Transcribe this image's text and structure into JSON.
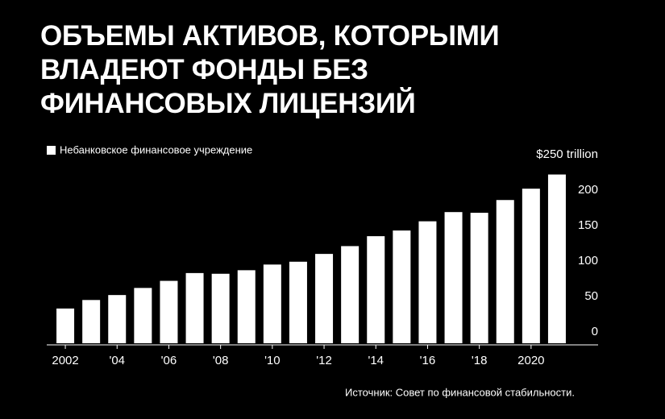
{
  "chart_data": {
    "type": "bar",
    "title": "ОБЪЕМЫ АКТИВОВ, КОТОРЫМИ ВЛАДЕЮТ ФОНДЫ БЕЗ ФИНАНСОВЫХ ЛИЦЕНЗИЙ",
    "source": "Источник: Совет по финансовой стабильности.",
    "categories": [
      "2002",
      null,
      "'04",
      null,
      "'06",
      null,
      "'08",
      null,
      "'10",
      null,
      "'12",
      null,
      "'14",
      null,
      "'16",
      null,
      "'18",
      null,
      "2020",
      null
    ],
    "series": [
      {
        "name": "Небанковское финансовое учреждение",
        "color": "#ffffff",
        "values": [
          49,
          61,
          68,
          78,
          88,
          99,
          98,
          103,
          111,
          115,
          126,
          137,
          151,
          159,
          172,
          185,
          184,
          202,
          218,
          238
        ]
      }
    ],
    "ylim": [
      0,
      250
    ],
    "yticks": [
      0,
      50,
      100,
      150,
      200,
      {
        "value": 250,
        "label": "$250 trillion"
      }
    ],
    "grid": false
  }
}
